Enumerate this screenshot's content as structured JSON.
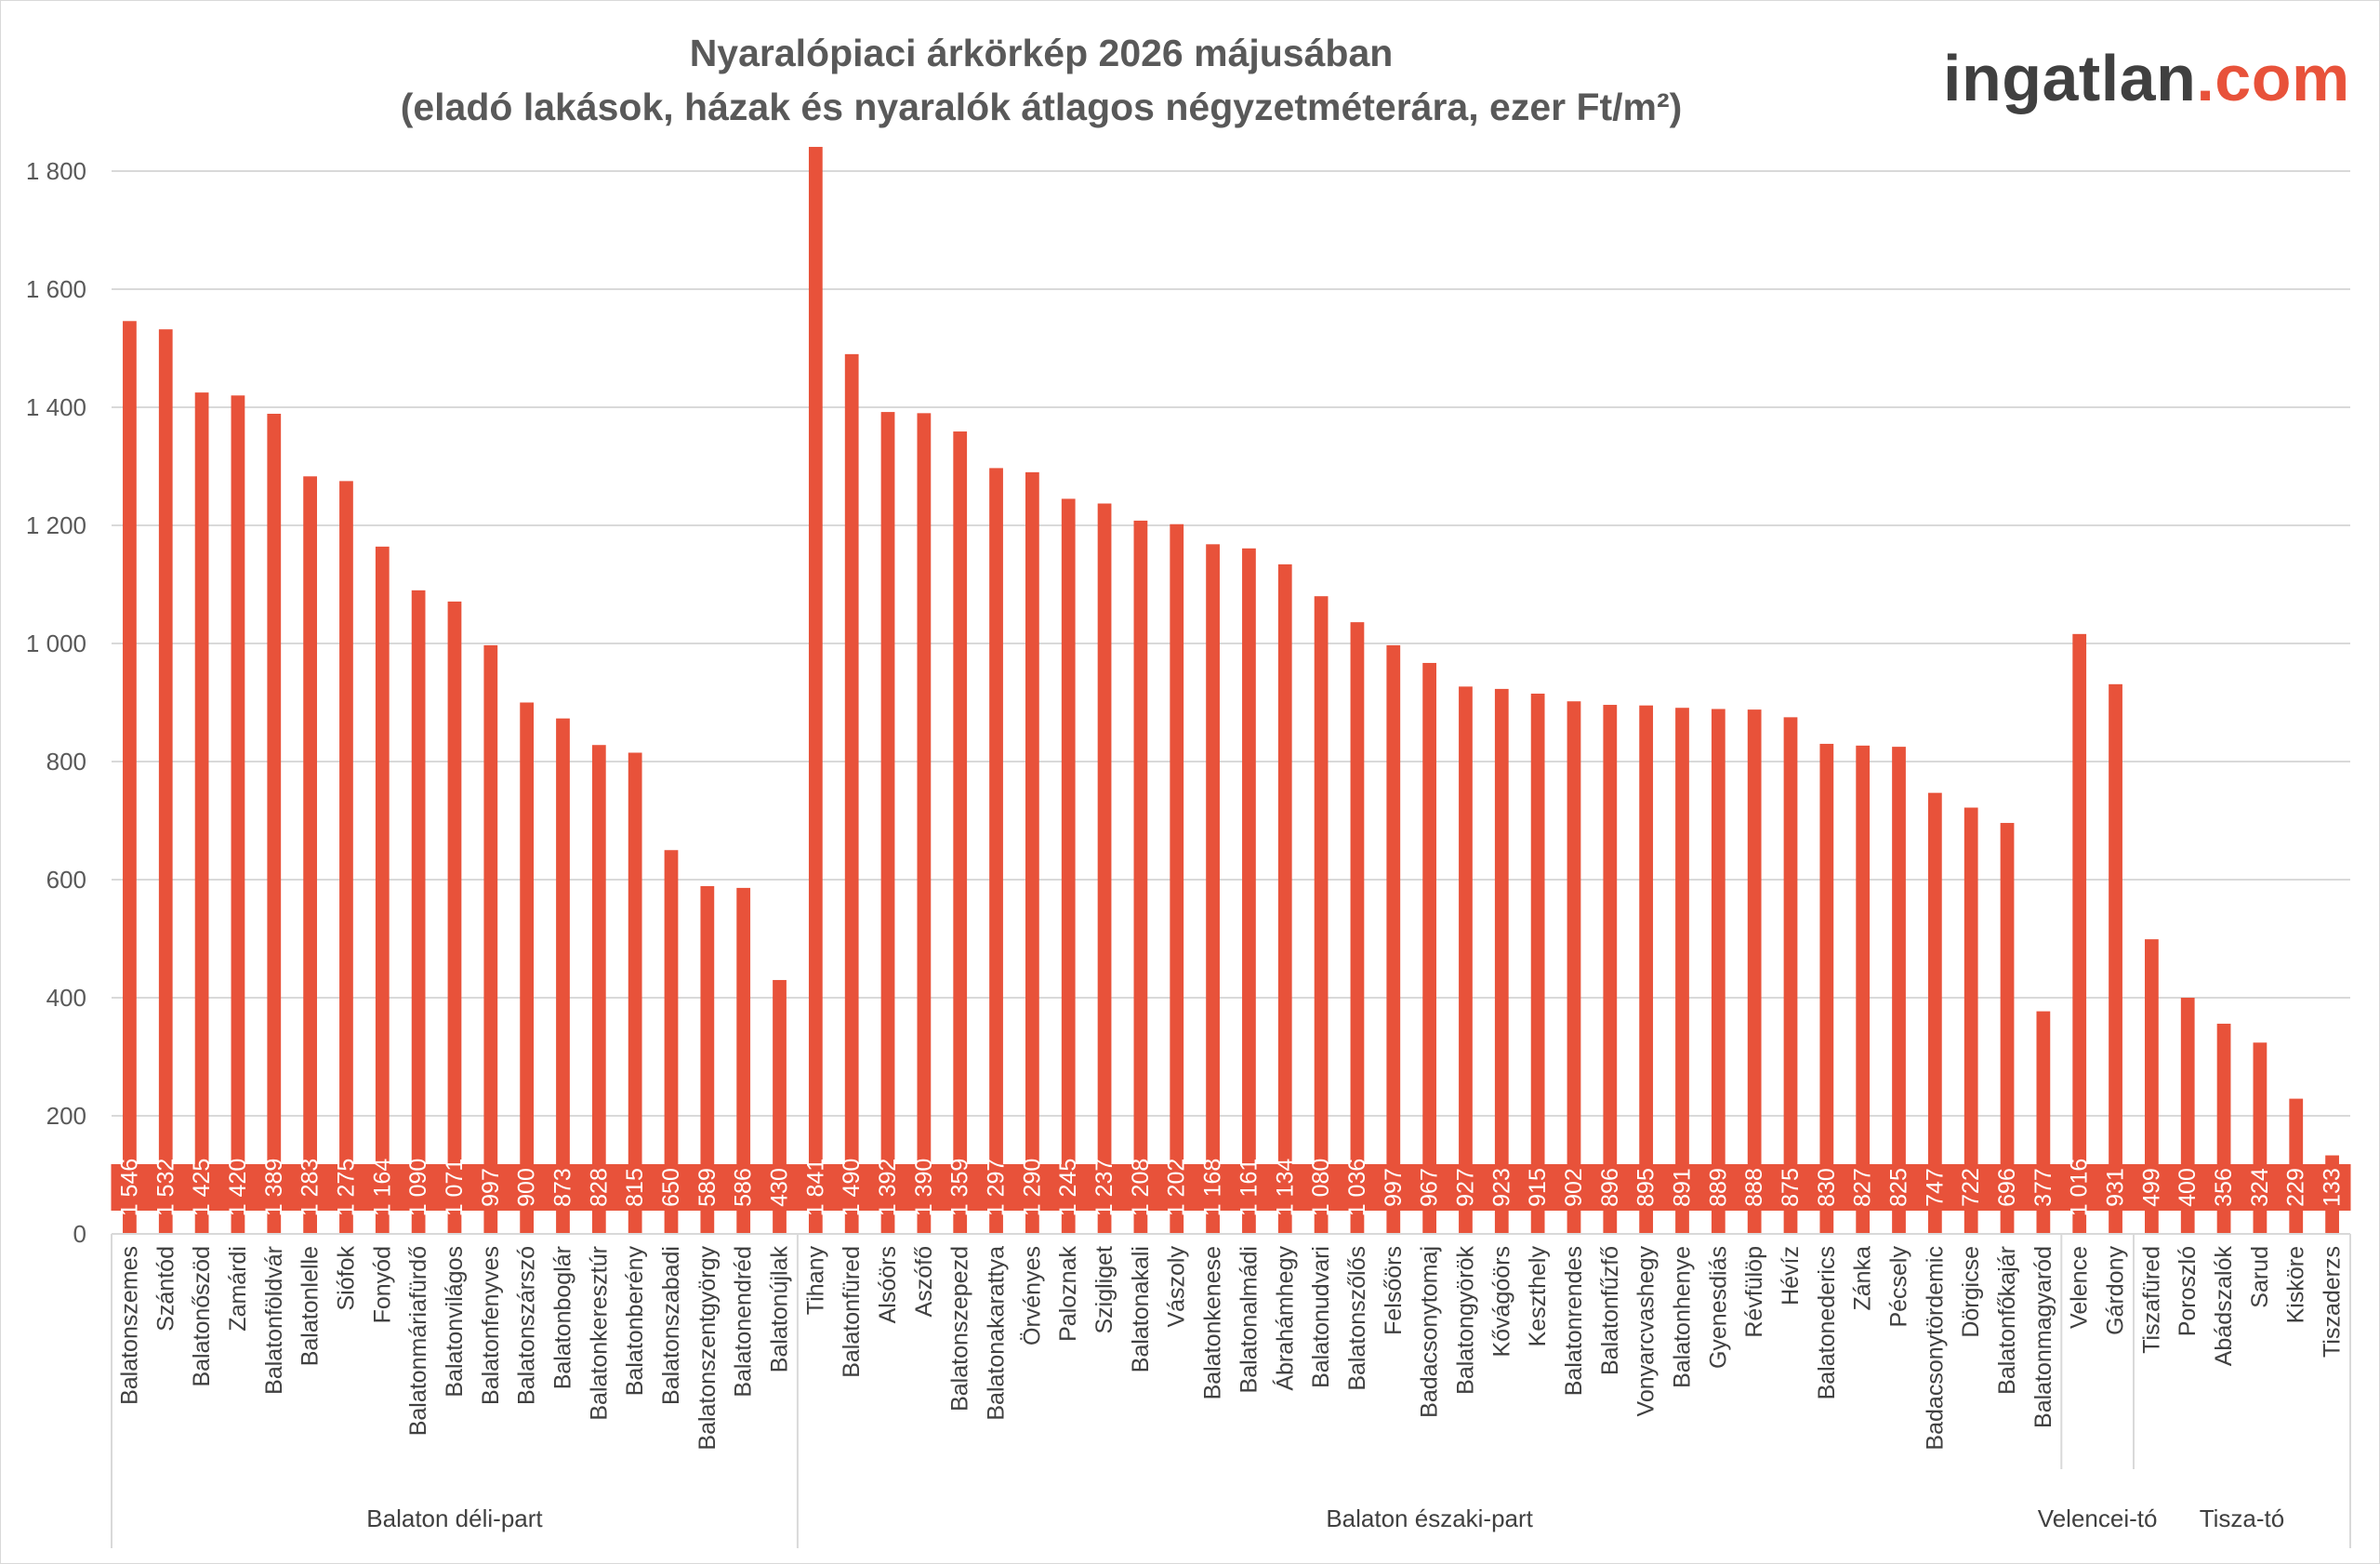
{
  "title_line1": "Nyaralópiaci árkörkép 2026 májusában",
  "title_line2": "(eladó lakások, házak és nyaralók átlagos négyzetméterára, ezer Ft/m²)",
  "brand": {
    "part1": "ingatlan",
    "part2": ".com"
  },
  "colors": {
    "bar": "#e8523a",
    "grid": "#d9d9d9",
    "text": "#595959",
    "label_text": "#ffffff"
  },
  "chart_data": {
    "type": "bar",
    "title": "Nyaralópiaci árkörkép 2026 májusában",
    "subtitle": "(eladó lakások, házak és nyaralók átlagos négyzetméterára, ezer Ft/m²)",
    "ylim": [
      0,
      1800
    ],
    "yticks": [
      0,
      200,
      400,
      600,
      800,
      1000,
      1200,
      1400,
      1600,
      1800
    ],
    "ytick_labels": [
      "0",
      "200",
      "400",
      "600",
      "800",
      "1 000",
      "1 200",
      "1 400",
      "1 600",
      "1 800"
    ],
    "grid": true,
    "legend": "none",
    "groups": [
      {
        "name": "Balaton déli-part",
        "categories": [
          "Balatonszemes",
          "Szántód",
          "Balatonőszöd",
          "Zamárdi",
          "Balatonföldvár",
          "Balatonlelle",
          "Siófok",
          "Fonyód",
          "Balatonmáriafürdő",
          "Balatonvilágos",
          "Balatonfenyves",
          "Balatonszárszó",
          "Balatonboglár",
          "Balatonkeresztúr",
          "Balatonberény",
          "Balatonszabadi",
          "Balatonszentgyörgy",
          "Balatonendréd",
          "Balatonújlak"
        ],
        "values": [
          1546,
          1532,
          1425,
          1420,
          1389,
          1283,
          1275,
          1164,
          1090,
          1071,
          997,
          900,
          873,
          828,
          815,
          650,
          589,
          586,
          430
        ],
        "labels": [
          "1 546",
          "1 532",
          "1 425",
          "1 420",
          "1 389",
          "1 283",
          "1 275",
          "1 164",
          "1 090",
          "1 071",
          "997",
          "900",
          "873",
          "828",
          "815",
          "650",
          "589",
          "586",
          "430"
        ]
      },
      {
        "name": "Balaton északi-part",
        "categories": [
          "Tihany",
          "Balatonfüred",
          "Alsóörs",
          "Aszófő",
          "Balatonszepezd",
          "Balatonakarattya",
          "Örvényes",
          "Paloznak",
          "Szigliget",
          "Balatonakali",
          "Vászoly",
          "Balatonkenese",
          "Balatonalmádi",
          "Ábrahámhegy",
          "Balatonudvari",
          "Balatonszőlős",
          "Felsőörs",
          "Badacsonytomaj",
          "Balatongyörök",
          "Kővágóörs",
          "Keszthely",
          "Balatonrendes",
          "Balatonfűzfő",
          "Vonyarcvashegy",
          "Balatonhenye",
          "Gyenesdiás",
          "Révfülöp",
          "Hévíz",
          "Balatonederics",
          "Zánka",
          "Pécsely",
          "Badacsonytördemic",
          "Dörgicse",
          "Balatonfőkajár",
          "Balatonmagyaród"
        ],
        "values": [
          1841,
          1490,
          1392,
          1390,
          1359,
          1297,
          1290,
          1245,
          1237,
          1208,
          1202,
          1168,
          1161,
          1134,
          1080,
          1036,
          997,
          967,
          927,
          923,
          915,
          902,
          896,
          895,
          891,
          889,
          888,
          875,
          830,
          827,
          825,
          747,
          722,
          696,
          377
        ],
        "labels": [
          "1 841",
          "1 490",
          "1 392",
          "1 390",
          "1 359",
          "1 297",
          "1 290",
          "1 245",
          "1 237",
          "1 208",
          "1 202",
          "1 168",
          "1 161",
          "1 134",
          "1 080",
          "1 036",
          "997",
          "967",
          "927",
          "923",
          "915",
          "902",
          "896",
          "895",
          "891",
          "889",
          "888",
          "875",
          "830",
          "827",
          "825",
          "747",
          "722",
          "696",
          "377"
        ]
      },
      {
        "name": "Velencei-tó",
        "categories": [
          "Velence",
          "Gárdony"
        ],
        "values": [
          1016,
          931
        ],
        "labels": [
          "1 016",
          "931"
        ]
      },
      {
        "name": "Tisza-tó",
        "categories": [
          "Tiszafüred",
          "Poroszló",
          "Abádszalók",
          "Sarud",
          "Kisköre",
          "Tiszaderzs"
        ],
        "values": [
          499,
          400,
          356,
          324,
          229,
          133
        ],
        "labels": [
          "499",
          "400",
          "356",
          "324",
          "229",
          "133"
        ]
      }
    ]
  }
}
